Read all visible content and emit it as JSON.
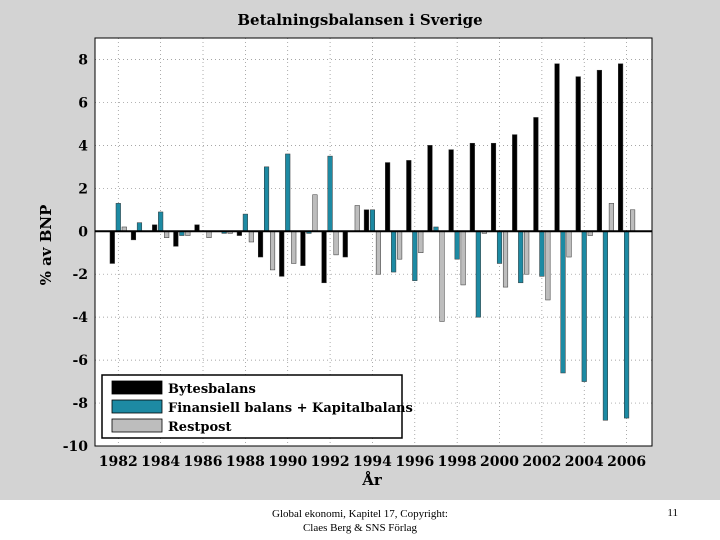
{
  "footer": {
    "line1": "Global ekonomi, Kapitel 17, Copyright:",
    "line2": "Claes Berg & SNS Förlag",
    "page_number": "11"
  },
  "chart_data": {
    "type": "bar",
    "title": "Betalningsbalansen i Sverige",
    "xlabel": "År",
    "ylabel": "% av BNP",
    "ylim": [
      -10,
      9
    ],
    "yticks": [
      -10,
      -8,
      -6,
      -4,
      -2,
      0,
      2,
      4,
      6,
      8
    ],
    "xtick_labels": [
      "1982",
      "1984",
      "1986",
      "1988",
      "1990",
      "1992",
      "1994",
      "1996",
      "1998",
      "2000",
      "2002",
      "2004",
      "2006"
    ],
    "grid": true,
    "legend_position": "bottom-left",
    "categories": [
      1982,
      1983,
      1984,
      1985,
      1986,
      1987,
      1988,
      1989,
      1990,
      1991,
      1992,
      1993,
      1994,
      1995,
      1996,
      1997,
      1998,
      1999,
      2000,
      2001,
      2002,
      2003,
      2004,
      2005,
      2006
    ],
    "series": [
      {
        "name": "Bytesbalans",
        "color": "#000000",
        "values": [
          -1.5,
          -0.4,
          0.3,
          -0.7,
          0.3,
          0.0,
          -0.2,
          -1.2,
          -2.1,
          -1.6,
          -2.4,
          -1.2,
          1.0,
          3.2,
          3.3,
          4.0,
          3.8,
          4.1,
          4.1,
          4.5,
          5.3,
          7.8,
          7.2,
          7.5,
          7.8
        ]
      },
      {
        "name": "Finansiell balans + Kapitalbalans",
        "color": "#1d8aa3",
        "values": [
          1.3,
          0.4,
          0.9,
          -0.2,
          0.0,
          -0.1,
          0.8,
          3.0,
          3.6,
          -0.1,
          3.5,
          0.0,
          1.0,
          -1.9,
          -2.3,
          0.2,
          -1.3,
          -4.0,
          -1.5,
          -2.4,
          -2.1,
          -6.6,
          -7.0,
          -8.8,
          -8.7
        ]
      },
      {
        "name": "Restpost",
        "color": "#bdbdbd",
        "values": [
          0.2,
          0.0,
          -0.3,
          -0.2,
          -0.3,
          -0.1,
          -0.5,
          -1.8,
          -1.5,
          1.7,
          -1.1,
          1.2,
          -2.0,
          -1.3,
          -1.0,
          -4.2,
          -2.5,
          -0.1,
          -2.6,
          -2.0,
          -3.2,
          -1.2,
          -0.2,
          1.3,
          1.0
        ]
      }
    ]
  }
}
